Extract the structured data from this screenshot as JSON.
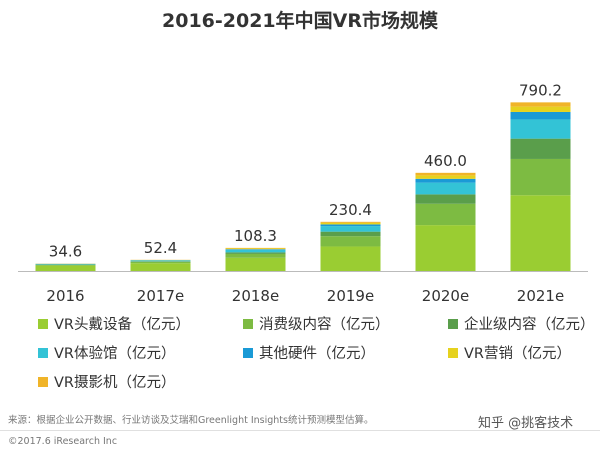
{
  "chart_data": {
    "type": "bar",
    "stacked": true,
    "title": "2016-2021年中国VR市场规模",
    "categories": [
      "2016",
      "2017e",
      "2018e",
      "2019e",
      "2020e",
      "2021e"
    ],
    "totals": [
      "34.6",
      "52.4",
      "108.3",
      "230.4",
      "460.0",
      "790.2"
    ],
    "ylim": [
      0,
      820
    ],
    "grid": false,
    "legend_position": "bottom",
    "series": [
      {
        "name": "VR头戴设备（亿元）",
        "color": "#9acd32",
        "values": [
          25.0,
          36.5,
          62.0,
          115.0,
          215.0,
          355.0
        ]
      },
      {
        "name": "消费级内容（亿元）",
        "color": "#7dbb42",
        "values": [
          4.0,
          6.5,
          18.0,
          48.0,
          100.0,
          170.0
        ]
      },
      {
        "name": "企业级内容（亿元）",
        "color": "#5a9e4b",
        "values": [
          1.6,
          2.6,
          7.3,
          21.4,
          44.0,
          95.2
        ]
      },
      {
        "name": "VR体验馆（亿元）",
        "color": "#33c3d6",
        "values": [
          2.5,
          4.0,
          12.0,
          26.0,
          55.0,
          90.0
        ]
      },
      {
        "name": "其他硬件（亿元）",
        "color": "#1a9ad6",
        "values": [
          0.5,
          1.0,
          3.0,
          8.0,
          18.0,
          35.0
        ]
      },
      {
        "name": "VR营销（亿元）",
        "color": "#e6d21e",
        "values": [
          0.5,
          1.0,
          3.5,
          7.0,
          16.0,
          25.0
        ]
      },
      {
        "name": "VR摄影机（亿元）",
        "color": "#f0b429",
        "values": [
          0.5,
          0.8,
          2.5,
          5.0,
          12.0,
          20.0
        ]
      }
    ]
  },
  "footer": {
    "source": "来源：根据企业公开数据、行业访谈及艾瑞和Greenlight Insights统计预测模型估算。",
    "copyright": "©2017.6 iResearch Inc",
    "watermark": "知乎 @挑客技术"
  }
}
